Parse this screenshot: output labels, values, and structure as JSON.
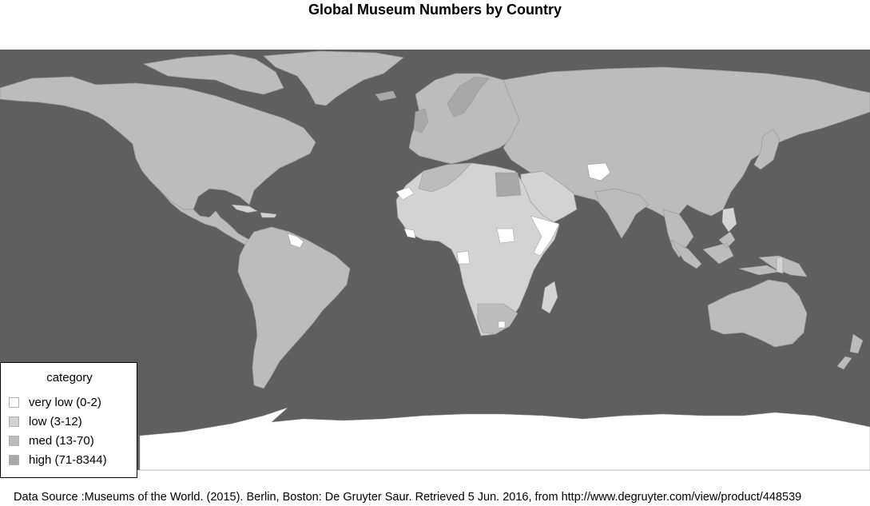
{
  "title": "Global Museum Numbers by Country",
  "legend": {
    "title": "category",
    "items": [
      {
        "label": "very low (0-2)",
        "color": "#ffffff"
      },
      {
        "label": "low (3-12)",
        "color": "#d3d3d3"
      },
      {
        "label": "med (13-70)",
        "color": "#bcbcbc"
      },
      {
        "label": "high (71-8344)",
        "color": "#a8a8a8"
      }
    ]
  },
  "colors": {
    "ocean": "#5f5f5f",
    "very_low": "#ffffff",
    "low": "#d3d3d3",
    "med": "#bcbcbc",
    "high": "#a8a8a8",
    "border": "#9a9a9a"
  },
  "source": "Data Source :Museums of the World. (2015). Berlin, Boston: De Gruyter Saur. Retrieved 5 Jun. 2016, from http://www.degruyter.com/view/product/448539"
}
